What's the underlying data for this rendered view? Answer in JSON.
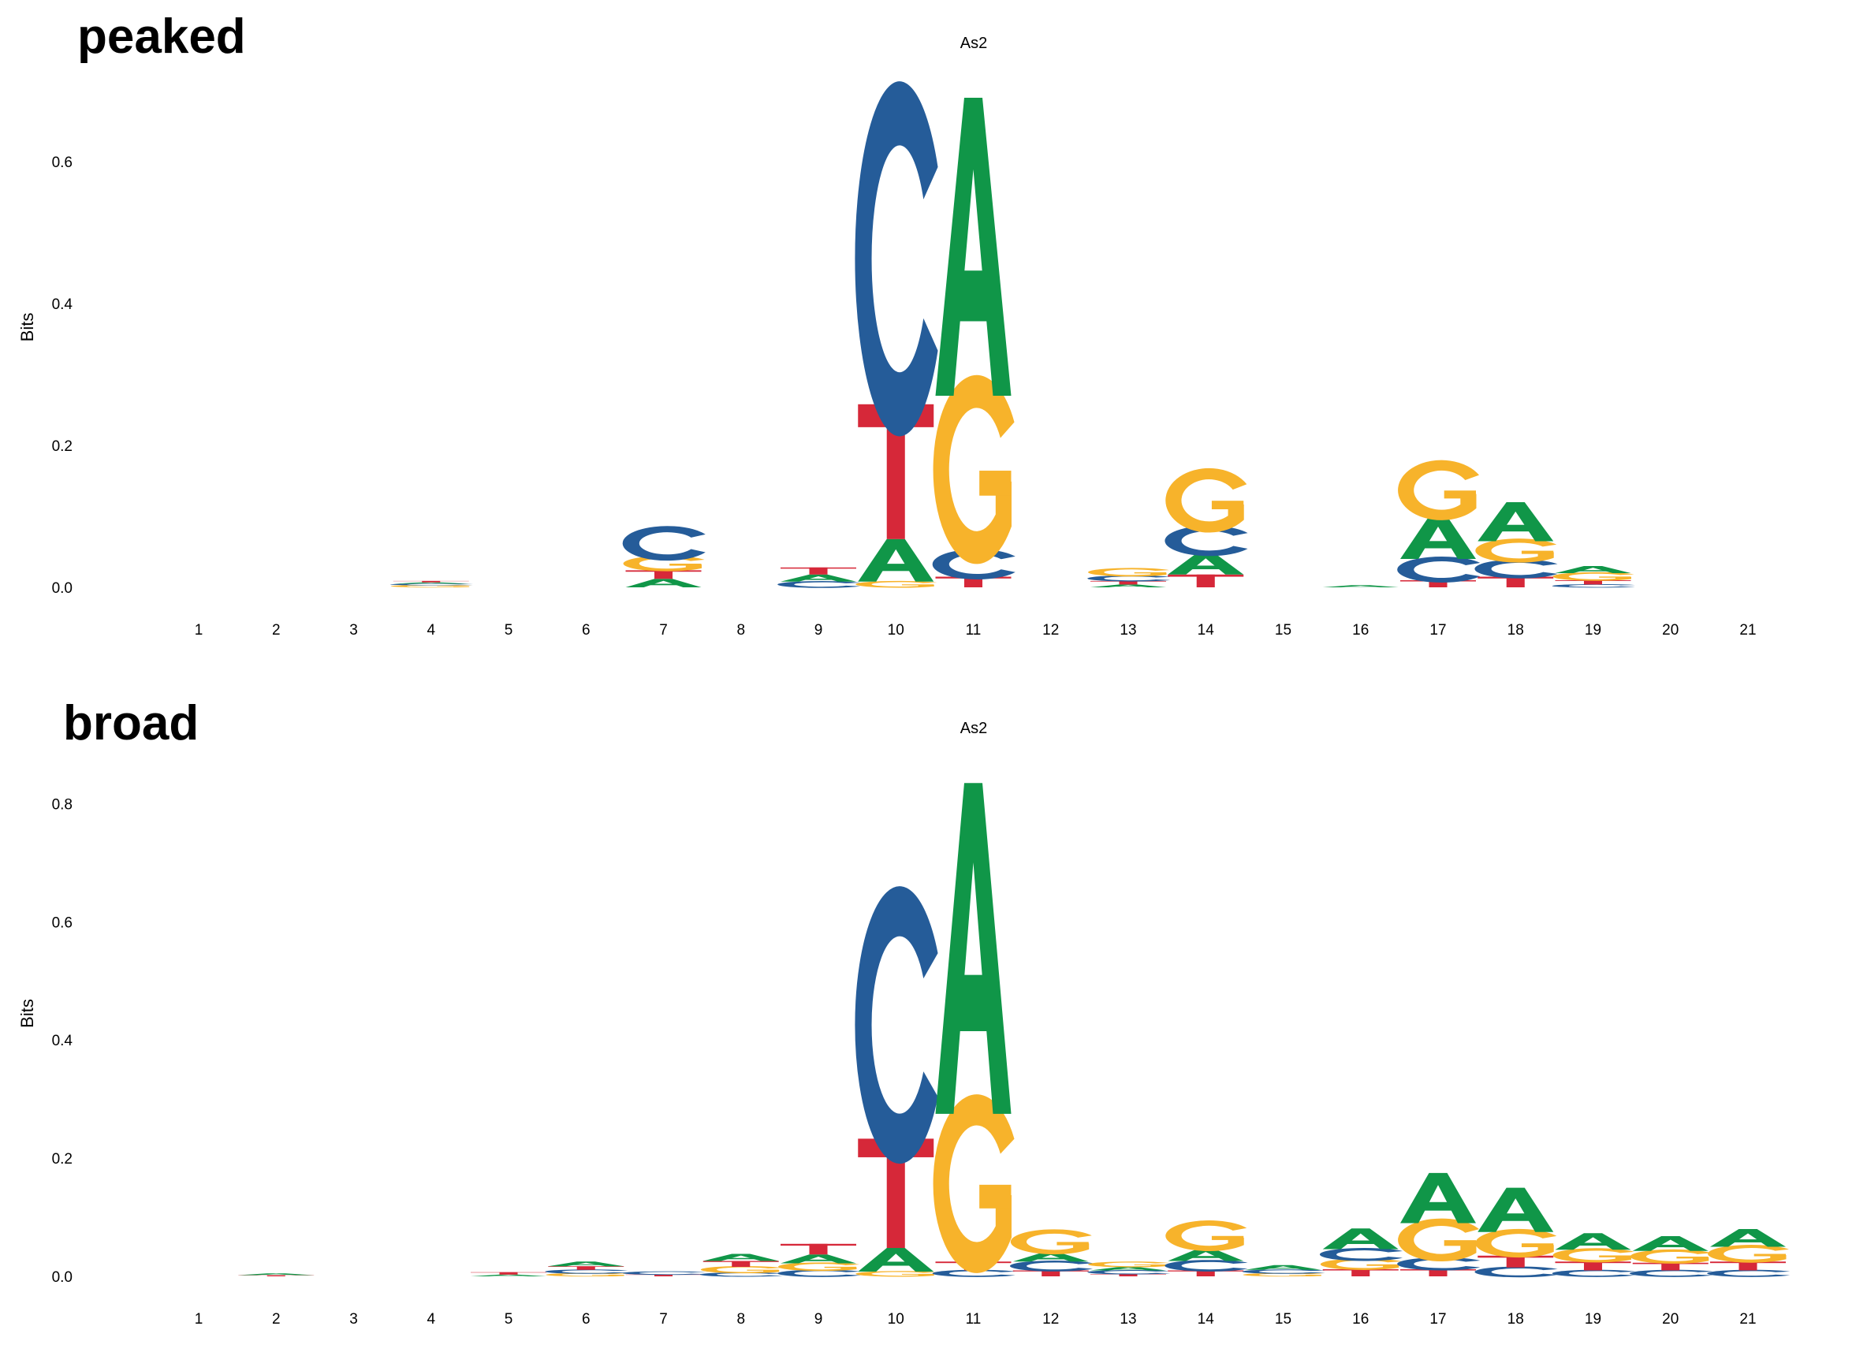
{
  "chart_data": [
    {
      "type": "sequence-logo",
      "panel_label": "peaked",
      "title": "As2",
      "xlabel": "",
      "ylabel": "Bits",
      "ylim": [
        0,
        0.7
      ],
      "yticks": [
        "0.0",
        "0.2",
        "0.4",
        "0.6"
      ],
      "positions": [
        "1",
        "2",
        "3",
        "4",
        "5",
        "6",
        "7",
        "8",
        "9",
        "10",
        "11",
        "12",
        "13",
        "14",
        "15",
        "16",
        "17",
        "18",
        "19",
        "20",
        "21"
      ],
      "stacks": [
        [],
        [],
        [],
        [
          {
            "base": "G",
            "bits": 0.003
          },
          {
            "base": "C",
            "bits": 0.002
          },
          {
            "base": "A",
            "bits": 0.002
          },
          {
            "base": "T",
            "bits": 0.002
          }
        ],
        [],
        [],
        [
          {
            "base": "A",
            "bits": 0.012
          },
          {
            "base": "T",
            "bits": 0.012
          },
          {
            "base": "G",
            "bits": 0.018
          },
          {
            "base": "C",
            "bits": 0.04
          }
        ],
        [],
        [
          {
            "base": "C",
            "bits": 0.008
          },
          {
            "base": "A",
            "bits": 0.01
          },
          {
            "base": "T",
            "bits": 0.01
          }
        ],
        [
          {
            "base": "G",
            "bits": 0.008
          },
          {
            "base": "A",
            "bits": 0.06
          },
          {
            "base": "T",
            "bits": 0.19
          },
          {
            "base": "C",
            "bits": 0.41
          }
        ],
        [
          {
            "base": "T",
            "bits": 0.015
          },
          {
            "base": "C",
            "bits": 0.035
          },
          {
            "base": "G",
            "bits": 0.22
          },
          {
            "base": "A",
            "bits": 0.42
          }
        ],
        [],
        [
          {
            "base": "A",
            "bits": 0.004
          },
          {
            "base": "T",
            "bits": 0.005
          },
          {
            "base": "C",
            "bits": 0.007
          },
          {
            "base": "G",
            "bits": 0.01
          }
        ],
        [
          {
            "base": "T",
            "bits": 0.018
          },
          {
            "base": "A",
            "bits": 0.03
          },
          {
            "base": "C",
            "bits": 0.035
          },
          {
            "base": "G",
            "bits": 0.075
          }
        ],
        [],
        [
          {
            "base": "A",
            "bits": 0.003
          }
        ],
        [
          {
            "base": "T",
            "bits": 0.01
          },
          {
            "base": "C",
            "bits": 0.03
          },
          {
            "base": "A",
            "bits": 0.06
          },
          {
            "base": "G",
            "bits": 0.07
          }
        ],
        [
          {
            "base": "T",
            "bits": 0.015
          },
          {
            "base": "C",
            "bits": 0.022
          },
          {
            "base": "G",
            "bits": 0.028
          },
          {
            "base": "A",
            "bits": 0.055
          }
        ],
        [
          {
            "base": "C",
            "bits": 0.004
          },
          {
            "base": "T",
            "bits": 0.006
          },
          {
            "base": "G",
            "bits": 0.01
          },
          {
            "base": "A",
            "bits": 0.01
          }
        ],
        [],
        []
      ]
    },
    {
      "type": "sequence-logo",
      "panel_label": "broad",
      "title": "As2",
      "xlabel": "",
      "ylabel": "Bits",
      "ylim": [
        0,
        0.85
      ],
      "yticks": [
        "0.0",
        "0.2",
        "0.4",
        "0.6",
        "0.8"
      ],
      "positions": [
        "1",
        "2",
        "3",
        "4",
        "5",
        "6",
        "7",
        "8",
        "9",
        "10",
        "11",
        "12",
        "13",
        "14",
        "15",
        "16",
        "17",
        "18",
        "19",
        "20",
        "21"
      ],
      "stacks": [
        [],
        [
          {
            "base": "T",
            "bits": 0.002
          },
          {
            "base": "A",
            "bits": 0.003
          }
        ],
        [],
        [],
        [
          {
            "base": "A",
            "bits": 0.003
          },
          {
            "base": "T",
            "bits": 0.004
          }
        ],
        [
          {
            "base": "G",
            "bits": 0.005
          },
          {
            "base": "C",
            "bits": 0.006
          },
          {
            "base": "T",
            "bits": 0.006
          },
          {
            "base": "A",
            "bits": 0.008
          }
        ],
        [
          {
            "base": "T",
            "bits": 0.003
          },
          {
            "base": "C",
            "bits": 0.005
          }
        ],
        [
          {
            "base": "C",
            "bits": 0.006
          },
          {
            "base": "G",
            "bits": 0.01
          },
          {
            "base": "T",
            "bits": 0.01
          },
          {
            "base": "A",
            "bits": 0.012
          }
        ],
        [
          {
            "base": "C",
            "bits": 0.01
          },
          {
            "base": "G",
            "bits": 0.012
          },
          {
            "base": "A",
            "bits": 0.015
          },
          {
            "base": "T",
            "bits": 0.018
          }
        ],
        [
          {
            "base": "G",
            "bits": 0.008
          },
          {
            "base": "A",
            "bits": 0.04
          },
          {
            "base": "T",
            "bits": 0.185
          },
          {
            "base": "C",
            "bits": 0.385
          }
        ],
        [
          {
            "base": "C",
            "bits": 0.01
          },
          {
            "base": "T",
            "bits": 0.015
          },
          {
            "base": "G",
            "bits": 0.25
          },
          {
            "base": "A",
            "bits": 0.56
          }
        ],
        [
          {
            "base": "T",
            "bits": 0.01
          },
          {
            "base": "C",
            "bits": 0.015
          },
          {
            "base": "A",
            "bits": 0.015
          },
          {
            "base": "G",
            "bits": 0.035
          }
        ],
        [
          {
            "base": "T",
            "bits": 0.004
          },
          {
            "base": "C",
            "bits": 0.006
          },
          {
            "base": "A",
            "bits": 0.006
          },
          {
            "base": "G",
            "bits": 0.008
          }
        ],
        [
          {
            "base": "T",
            "bits": 0.01
          },
          {
            "base": "C",
            "bits": 0.016
          },
          {
            "base": "A",
            "bits": 0.02
          },
          {
            "base": "G",
            "bits": 0.043
          }
        ],
        [
          {
            "base": "G",
            "bits": 0.005
          },
          {
            "base": "C",
            "bits": 0.006
          },
          {
            "base": "A",
            "bits": 0.008
          }
        ],
        [
          {
            "base": "T",
            "bits": 0.012
          },
          {
            "base": "G",
            "bits": 0.016
          },
          {
            "base": "C",
            "bits": 0.018
          },
          {
            "base": "A",
            "bits": 0.035
          }
        ],
        [
          {
            "base": "T",
            "bits": 0.012
          },
          {
            "base": "C",
            "bits": 0.018
          },
          {
            "base": "G",
            "bits": 0.06
          },
          {
            "base": "A",
            "bits": 0.085
          }
        ],
        [
          {
            "base": "C",
            "bits": 0.015
          },
          {
            "base": "T",
            "bits": 0.02
          },
          {
            "base": "G",
            "bits": 0.04
          },
          {
            "base": "A",
            "bits": 0.075
          }
        ],
        [
          {
            "base": "C",
            "bits": 0.01
          },
          {
            "base": "T",
            "bits": 0.015
          },
          {
            "base": "G",
            "bits": 0.02
          },
          {
            "base": "A",
            "bits": 0.028
          }
        ],
        [
          {
            "base": "C",
            "bits": 0.01
          },
          {
            "base": "T",
            "bits": 0.013
          },
          {
            "base": "G",
            "bits": 0.02
          },
          {
            "base": "A",
            "bits": 0.025
          }
        ],
        [
          {
            "base": "C",
            "bits": 0.01
          },
          {
            "base": "T",
            "bits": 0.015
          },
          {
            "base": "G",
            "bits": 0.025
          },
          {
            "base": "A",
            "bits": 0.03
          }
        ]
      ]
    }
  ],
  "colors": {
    "A": "#109648",
    "C": "#255C99",
    "G": "#F7B32B",
    "T": "#D62839"
  }
}
